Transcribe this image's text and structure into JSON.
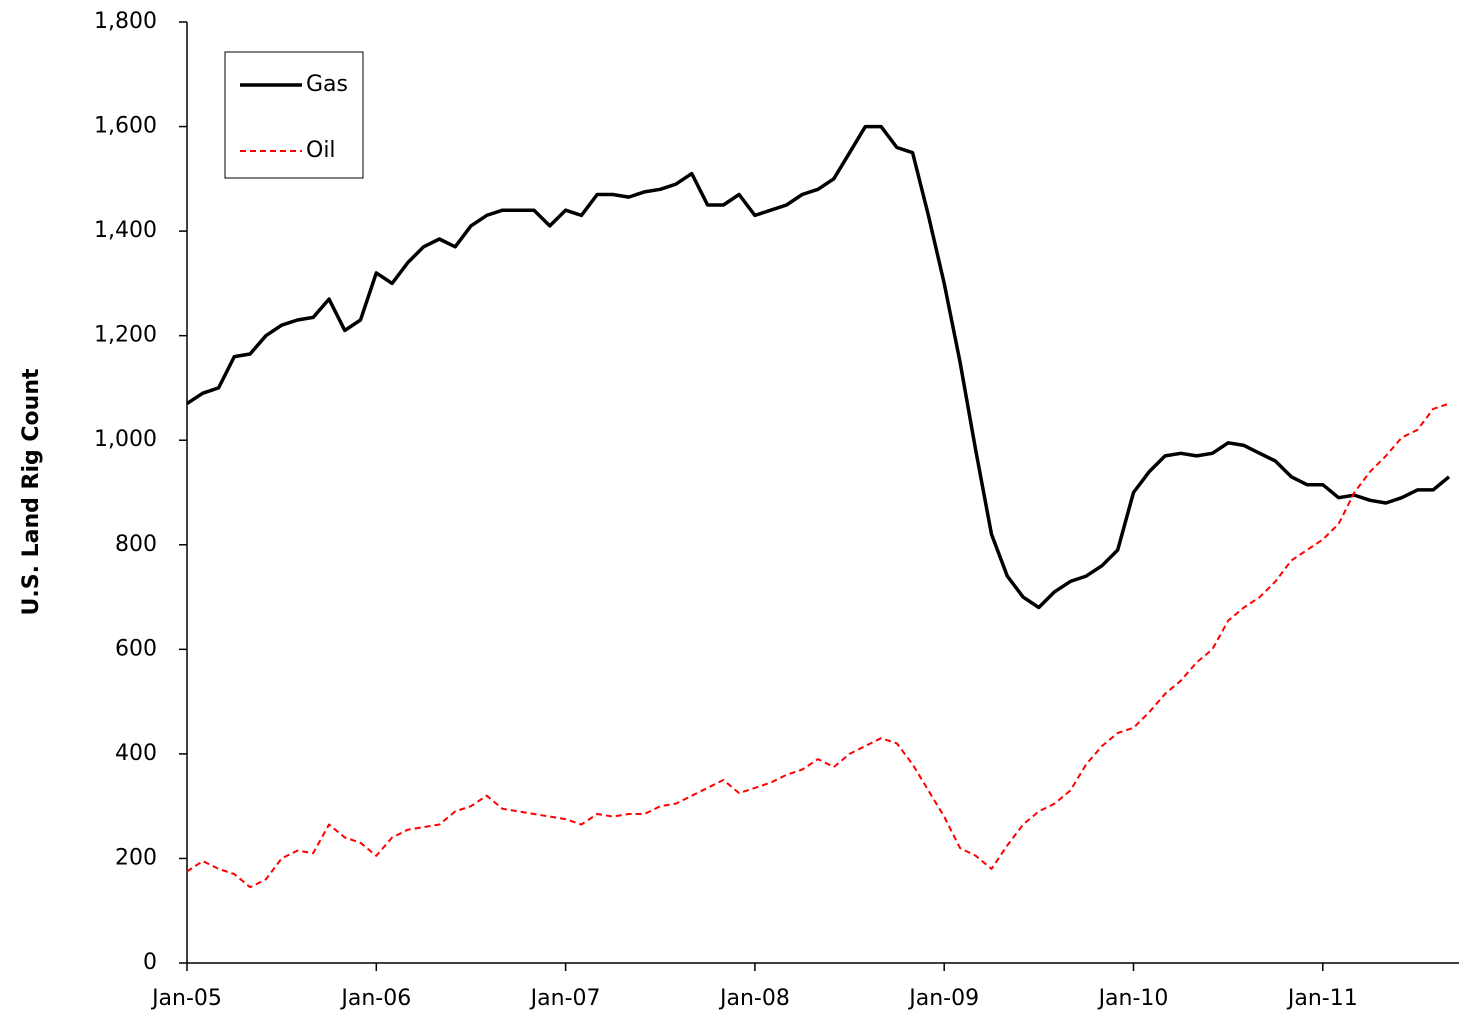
{
  "chart_data": {
    "type": "line",
    "y_label": "U.S. Land Rig Count",
    "categories": [
      "Jan-05",
      null,
      null,
      null,
      null,
      null,
      null,
      null,
      null,
      null,
      null,
      null,
      "Jan-06",
      null,
      null,
      null,
      null,
      null,
      null,
      null,
      null,
      null,
      null,
      null,
      "Jan-07",
      null,
      null,
      null,
      null,
      null,
      null,
      null,
      null,
      null,
      null,
      null,
      "Jan-08",
      null,
      null,
      null,
      null,
      null,
      null,
      null,
      null,
      null,
      null,
      null,
      "Jan-09",
      null,
      null,
      null,
      null,
      null,
      null,
      null,
      null,
      null,
      null,
      null,
      "Jan-10",
      null,
      null,
      null,
      null,
      null,
      null,
      null,
      null,
      null,
      null,
      null,
      "Jan-11",
      null,
      null,
      null,
      null,
      null,
      null,
      null,
      null
    ],
    "series": [
      {
        "name": "Gas",
        "color": "#000000",
        "dash": false,
        "values": [
          1070,
          1090,
          1100,
          1160,
          1165,
          1200,
          1220,
          1230,
          1235,
          1270,
          1210,
          1230,
          1320,
          1300,
          1340,
          1370,
          1385,
          1370,
          1410,
          1430,
          1440,
          1440,
          1440,
          1410,
          1440,
          1430,
          1470,
          1470,
          1465,
          1475,
          1480,
          1490,
          1510,
          1450,
          1450,
          1470,
          1430,
          1440,
          1450,
          1470,
          1480,
          1500,
          1550,
          1600,
          1600,
          1560,
          1550,
          1430,
          1300,
          1150,
          980,
          820,
          740,
          700,
          680,
          710,
          730,
          740,
          760,
          790,
          900,
          940,
          970,
          975,
          970,
          975,
          995,
          990,
          975,
          960,
          930,
          915,
          915,
          890,
          895,
          885,
          880,
          890,
          905,
          905,
          930
        ]
      },
      {
        "name": "Oil",
        "color": "#ff0000",
        "dash": true,
        "values": [
          175,
          195,
          180,
          170,
          145,
          160,
          200,
          215,
          210,
          265,
          240,
          230,
          205,
          240,
          255,
          260,
          265,
          290,
          300,
          320,
          295,
          290,
          285,
          280,
          275,
          265,
          285,
          280,
          285,
          285,
          300,
          305,
          320,
          335,
          350,
          325,
          335,
          345,
          360,
          370,
          390,
          375,
          400,
          415,
          430,
          420,
          380,
          330,
          280,
          220,
          205,
          180,
          225,
          265,
          290,
          305,
          330,
          380,
          415,
          440,
          450,
          480,
          515,
          540,
          575,
          600,
          655,
          680,
          700,
          730,
          770,
          790,
          810,
          840,
          900,
          940,
          970,
          1005,
          1020,
          1060,
          1070
        ]
      }
    ],
    "ylim": [
      0,
      1800
    ],
    "yticks": [
      0,
      200,
      400,
      600,
      800,
      {
        "value": 1000,
        "label": "1,000"
      },
      {
        "value": 1200,
        "label": "1,200"
      },
      {
        "value": 1400,
        "label": "1,400"
      },
      {
        "value": 1600,
        "label": "1,600"
      },
      {
        "value": 1800,
        "label": "1,800"
      }
    ],
    "grid": false,
    "legend": "upper left"
  }
}
